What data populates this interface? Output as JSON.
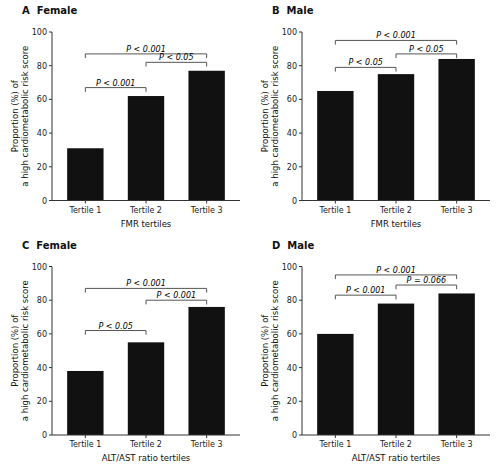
{
  "chart_data": [
    {
      "type": "bar",
      "title": "A  Female",
      "categories": [
        "Tertile 1",
        "Tertile 2",
        "Tertile 3"
      ],
      "values": [
        31,
        62,
        77
      ],
      "color": "#111111",
      "xlabel": "FMR tertiles",
      "ylabel": "Proportion (%) of\na high cardiometabolic risk score",
      "ylim": [
        0,
        100
      ],
      "yticks": [
        0,
        20,
        40,
        60,
        80,
        100
      ],
      "grid": false,
      "annotations": [
        {
          "text": "P < 0.001",
          "x": [
            "Tertile 1",
            "Tertile 2"
          ],
          "y": 67
        },
        {
          "text": "P < 0.001",
          "x": [
            "Tertile 1",
            "Tertile 3"
          ],
          "y": 87
        },
        {
          "text": "P < 0.05",
          "x": [
            "Tertile 2",
            "Tertile 3"
          ],
          "y": 82
        }
      ]
    },
    {
      "type": "bar",
      "title": "B  Male",
      "categories": [
        "Tertile 1",
        "Tertile 2",
        "Tertile 3"
      ],
      "values": [
        65,
        75,
        84
      ],
      "color": "#111111",
      "xlabel": "FMR tertiles",
      "ylabel": "Proportion (%) of\na high cardiometabolic risk score",
      "ylim": [
        0,
        100
      ],
      "yticks": [
        0,
        20,
        40,
        60,
        80,
        100
      ],
      "grid": false,
      "annotations": [
        {
          "text": "P < 0.05",
          "x": [
            "Tertile 1",
            "Tertile 2"
          ],
          "y": 79
        },
        {
          "text": "P < 0.001",
          "x": [
            "Tertile 1",
            "Tertile 3"
          ],
          "y": 95
        },
        {
          "text": "P < 0.05",
          "x": [
            "Tertile 2",
            "Tertile 3"
          ],
          "y": 87
        }
      ]
    },
    {
      "type": "bar",
      "title": "C  Female",
      "categories": [
        "Tertile 1",
        "Tertile 2",
        "Tertile 3"
      ],
      "values": [
        38,
        55,
        76
      ],
      "color": "#111111",
      "xlabel": "ALT/AST ratio tertiles",
      "ylabel": "Proportion (%) of\na high cardiometabolic risk score",
      "ylim": [
        0,
        100
      ],
      "yticks": [
        0,
        20,
        40,
        60,
        80,
        100
      ],
      "grid": false,
      "annotations": [
        {
          "text": "P < 0.05",
          "x": [
            "Tertile 1",
            "Tertile 2"
          ],
          "y": 62
        },
        {
          "text": "P < 0.001",
          "x": [
            "Tertile 1",
            "Tertile 3"
          ],
          "y": 87
        },
        {
          "text": "P < 0.001",
          "x": [
            "Tertile 2",
            "Tertile 3"
          ],
          "y": 80
        }
      ]
    },
    {
      "type": "bar",
      "title": "D  Male",
      "categories": [
        "Tertile 1",
        "Tertile 2",
        "Tertile 3"
      ],
      "values": [
        60,
        78,
        84
      ],
      "color": "#111111",
      "xlabel": "ALT/AST ratio tertiles",
      "ylabel": "Proportion (%) of\na high cardiometabolic risk score",
      "ylim": [
        0,
        100
      ],
      "yticks": [
        0,
        20,
        40,
        60,
        80,
        100
      ],
      "grid": false,
      "annotations": [
        {
          "text": "P < 0.001",
          "x": [
            "Tertile 1",
            "Tertile 2"
          ],
          "y": 83
        },
        {
          "text": "P < 0.001",
          "x": [
            "Tertile 1",
            "Tertile 3"
          ],
          "y": 95
        },
        {
          "text": "P = 0.066",
          "x": [
            "Tertile 2",
            "Tertile 3"
          ],
          "y": 89
        }
      ]
    }
  ]
}
